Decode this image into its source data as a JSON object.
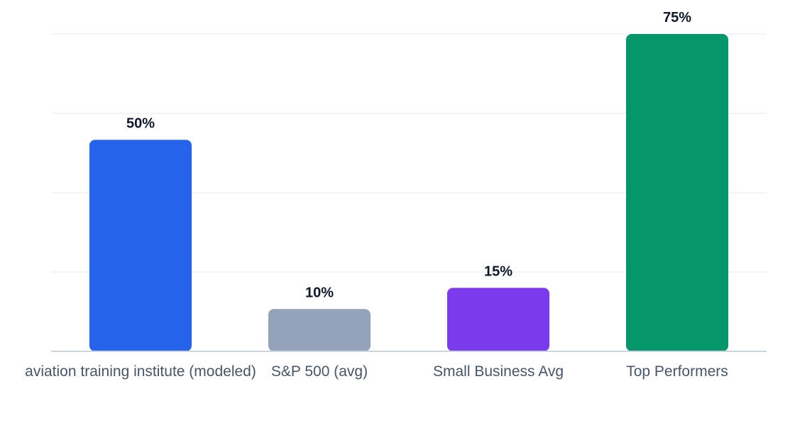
{
  "chart_data": {
    "type": "bar",
    "categories": [
      "aviation training institute (modeled)",
      "S&P 500 (avg)",
      "Small Business Avg",
      "Top Performers"
    ],
    "values": [
      50,
      10,
      15,
      75
    ],
    "value_labels": [
      "50%",
      "10%",
      "15%",
      "75%"
    ],
    "colors": [
      "#2563eb",
      "#94a3b8",
      "#7c3aed",
      "#059669"
    ],
    "ylim": [
      0,
      75
    ],
    "grid": true,
    "legend": "none"
  }
}
